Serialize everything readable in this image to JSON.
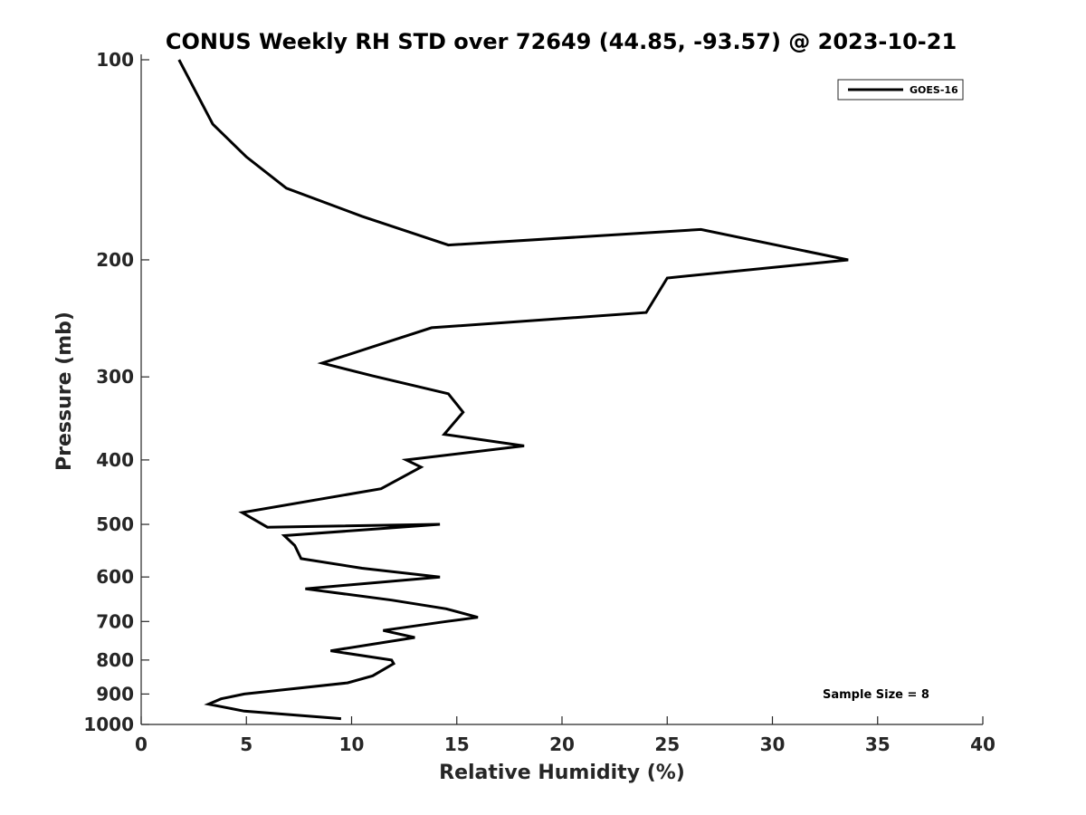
{
  "chart_data": {
    "type": "line",
    "title": "CONUS Weekly RH STD over 72649 (44.85, -93.57) @ 2023-10-21",
    "xlabel": "Relative Humidity (%)",
    "ylabel": "Pressure (mb)",
    "xlim": [
      0,
      40
    ],
    "ylim": [
      100,
      1000
    ],
    "yscale": "log",
    "y_reversed": true,
    "xticks": [
      0,
      5,
      10,
      15,
      20,
      25,
      30,
      35,
      40
    ],
    "yticks": [
      100,
      200,
      300,
      400,
      500,
      600,
      700,
      800,
      900,
      1000
    ],
    "grid": false,
    "legend": {
      "position": "top-right",
      "entries": [
        "GOES-16"
      ]
    },
    "annotation": "Sample Size = 8",
    "series": [
      {
        "name": "GOES-16",
        "color": "#000000",
        "points": [
          [
            1.8,
            100
          ],
          [
            3.4,
            125
          ],
          [
            5.0,
            140
          ],
          [
            6.9,
            156
          ],
          [
            10.5,
            172
          ],
          [
            14.6,
            190
          ],
          [
            26.6,
            180
          ],
          [
            33.6,
            200
          ],
          [
            25.0,
            213
          ],
          [
            24.0,
            240
          ],
          [
            13.8,
            253
          ],
          [
            8.6,
            286
          ],
          [
            11.0,
            299
          ],
          [
            14.6,
            318
          ],
          [
            15.3,
            339
          ],
          [
            14.4,
            366
          ],
          [
            18.2,
            381
          ],
          [
            12.6,
            400
          ],
          [
            13.3,
            410
          ],
          [
            11.4,
            442
          ],
          [
            4.8,
            480
          ],
          [
            6.0,
            505
          ],
          [
            14.2,
            500
          ],
          [
            6.8,
            520
          ],
          [
            7.3,
            538
          ],
          [
            7.6,
            563
          ],
          [
            10.5,
            582
          ],
          [
            14.2,
            600
          ],
          [
            7.8,
            625
          ],
          [
            11.9,
            650
          ],
          [
            14.5,
            670
          ],
          [
            16.0,
            690
          ],
          [
            14.5,
            700
          ],
          [
            11.5,
            722
          ],
          [
            13.0,
            740
          ],
          [
            9.0,
            775
          ],
          [
            11.9,
            800
          ],
          [
            12.0,
            810
          ],
          [
            11.0,
            845
          ],
          [
            9.8,
            866
          ],
          [
            4.9,
            900
          ],
          [
            3.8,
            915
          ],
          [
            3.2,
            932
          ],
          [
            4.9,
            955
          ],
          [
            9.5,
            980
          ]
        ]
      }
    ]
  }
}
